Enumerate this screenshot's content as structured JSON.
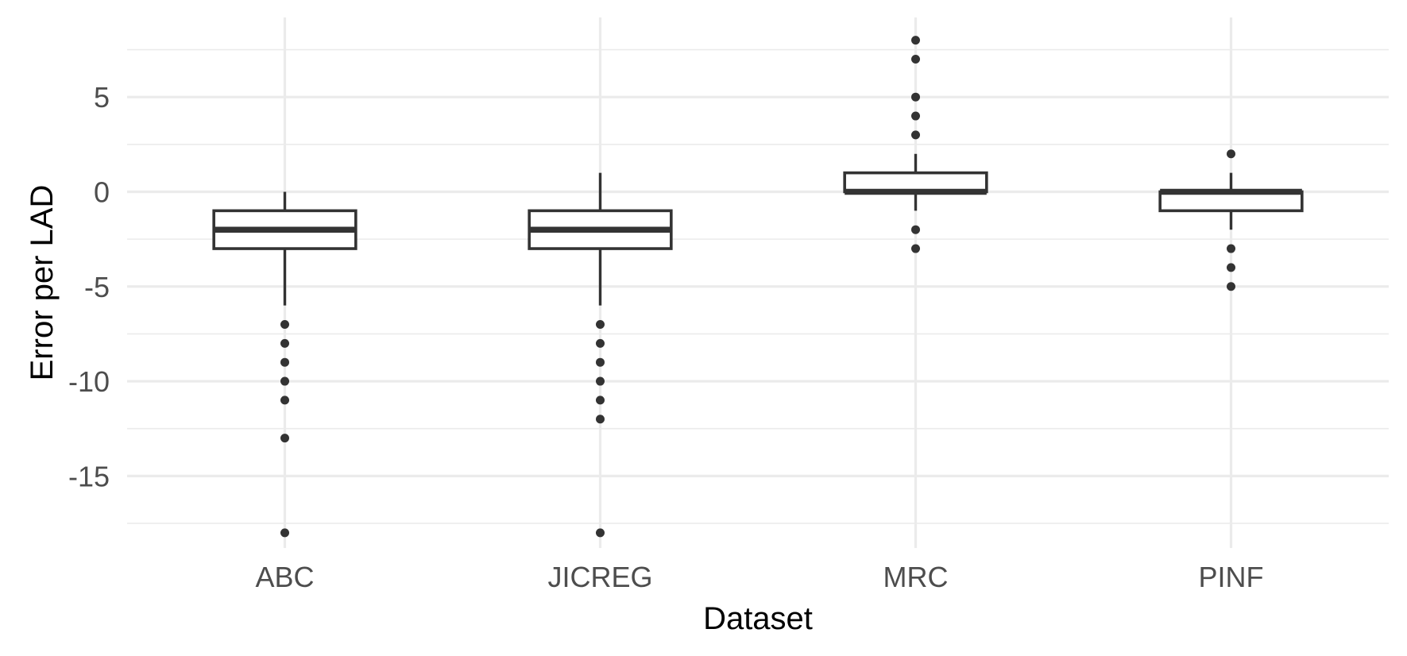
{
  "chart_data": {
    "type": "boxplot",
    "title": "",
    "xlabel": "Dataset",
    "ylabel": "Error per LAD",
    "ylim": [
      -18.8,
      9.2
    ],
    "yticks": [
      5,
      0,
      -5,
      -10,
      -15
    ],
    "ytick_labels": [
      "5",
      "0",
      "-5",
      "-10",
      "-15"
    ],
    "minor_yticks": [
      7.5,
      2.5,
      -2.5,
      -7.5,
      -12.5,
      -17.5
    ],
    "grid": true,
    "legend": "none",
    "categories": [
      "ABC",
      "JICREG",
      "MRC",
      "PINF"
    ],
    "boxes": [
      {
        "category": "ABC",
        "whisker_low": -6,
        "q1": -3,
        "median": -2,
        "q3": -1,
        "whisker_high": 0,
        "outliers": [
          -7,
          -8,
          -9,
          -10,
          -11,
          -13,
          -18
        ]
      },
      {
        "category": "JICREG",
        "whisker_low": -6,
        "q1": -3,
        "median": -2,
        "q3": -1,
        "whisker_high": 1,
        "outliers": [
          -7,
          -8,
          -9,
          -10,
          -11,
          -12,
          -18
        ]
      },
      {
        "category": "MRC",
        "whisker_low": -1,
        "q1": 0,
        "median": 0,
        "q3": 1,
        "whisker_high": 2,
        "outliers": [
          8,
          7,
          5,
          4,
          3,
          -2,
          -3
        ]
      },
      {
        "category": "PINF",
        "whisker_low": -2,
        "q1": -1,
        "median": 0,
        "q3": 0,
        "whisker_high": 1,
        "outliers": [
          2,
          -3,
          -4,
          -5
        ]
      }
    ]
  },
  "colors": {
    "box_stroke": "#333333",
    "grid": "#ebebeb",
    "tick_text": "#4d4d4d",
    "title_text": "#000000"
  }
}
